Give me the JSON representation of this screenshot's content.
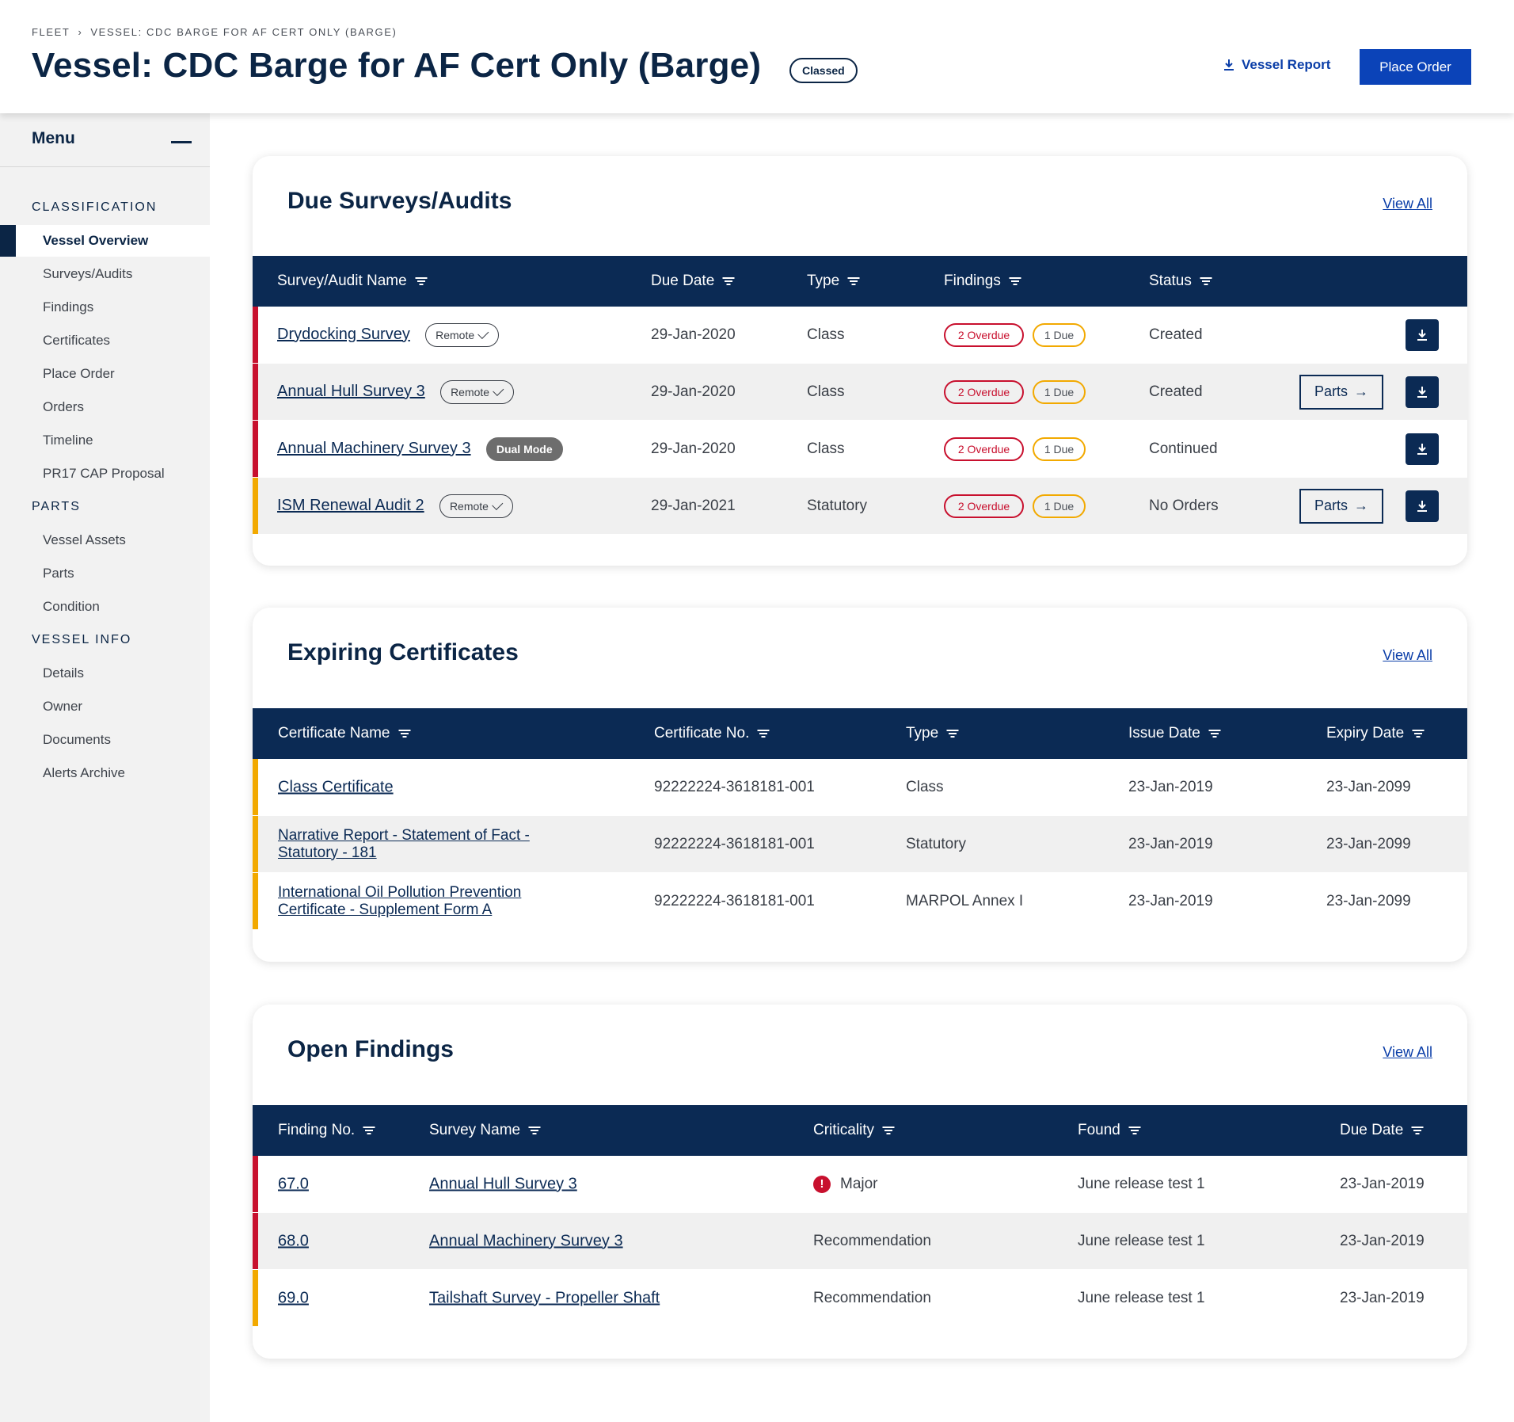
{
  "header": {
    "breadcrumb": [
      "FLEET",
      "VESSEL: CDC BARGE FOR AF CERT ONLY (BARGE)"
    ],
    "title": "Vessel: CDC Barge for AF Cert Only (Barge)",
    "badge": "Classed",
    "vessel_report_label": "Vessel Report",
    "place_order_label": "Place Order"
  },
  "sidebar": {
    "menu_title": "Menu",
    "sections": [
      {
        "title": "CLASSIFICATION",
        "items": [
          "Vessel Overview",
          "Surveys/Audits",
          "Findings",
          "Certificates",
          "Place Order",
          "Orders",
          "Timeline",
          "PR17 CAP Proposal"
        ]
      },
      {
        "title": "PARTS",
        "items": [
          "Vessel Assets",
          "Parts",
          "Condition"
        ]
      },
      {
        "title": "VESSEL INFO",
        "items": [
          "Details",
          "Owner",
          "Documents",
          "Alerts Archive"
        ]
      }
    ],
    "active_item": "Vessel Overview"
  },
  "surveys": {
    "title": "Due Surveys/Audits",
    "view_all": "View All",
    "columns": [
      "Survey/Audit Name",
      "Due Date",
      "Type",
      "Findings",
      "Status"
    ],
    "rows": [
      {
        "name": "Drydocking Survey",
        "tag": "Remote",
        "due": "29-Jan-2020",
        "type": "Class",
        "overdue": "2 Overdue",
        "due_count": "1 Due",
        "status": "Created",
        "parts": ""
      },
      {
        "name": "Annual Hull Survey 3",
        "tag": "Remote",
        "due": "29-Jan-2020",
        "type": "Class",
        "overdue": "2 Overdue",
        "due_count": "1 Due",
        "status": "Created",
        "parts": "Parts"
      },
      {
        "name": "Annual Machinery Survey 3",
        "tag": "Dual Mode",
        "due": "29-Jan-2020",
        "type": "Class",
        "overdue": "2 Overdue",
        "due_count": "1 Due",
        "status": "Continued",
        "parts": ""
      },
      {
        "name": "ISM Renewal Audit 2",
        "tag": "Remote",
        "due": "29-Jan-2021",
        "type": "Statutory",
        "overdue": "2 Overdue",
        "due_count": "1 Due",
        "status": "No Orders",
        "parts": "Parts"
      }
    ]
  },
  "certificates": {
    "title": "Expiring Certificates",
    "view_all": "View All",
    "columns": [
      "Certificate Name",
      "Certificate No.",
      "Type",
      "Issue Date",
      "Expiry Date"
    ],
    "rows": [
      {
        "name": "Class Certificate",
        "number": "92222224-3618181-001",
        "type": "Class",
        "issue": "23-Jan-2019",
        "expiry": "23-Jan-2099"
      },
      {
        "name": "Narrative Report - Statement of Fact - Statutory - 181",
        "number": "92222224-3618181-001",
        "type": "Statutory",
        "issue": "23-Jan-2019",
        "expiry": "23-Jan-2099"
      },
      {
        "name": "International Oil Pollution Prevention Certificate - Supplement Form A",
        "number": "92222224-3618181-001",
        "type": "MARPOL Annex I",
        "issue": "23-Jan-2019",
        "expiry": "23-Jan-2099"
      }
    ]
  },
  "findings": {
    "title": "Open Findings",
    "view_all": "View All",
    "columns": [
      "Finding No.",
      "Survey Name",
      "Criticality",
      "Found",
      "Due Date"
    ],
    "rows": [
      {
        "number": "67.0",
        "survey": "Annual Hull Survey 3",
        "criticality": "Major",
        "found": "June release test 1",
        "due": "23-Jan-2019"
      },
      {
        "number": "68.0",
        "survey": "Annual Machinery Survey 3",
        "criticality": "Recommendation",
        "found": "June release test 1",
        "due": "23-Jan-2019"
      },
      {
        "number": "69.0",
        "survey": "Tailshaft Survey - Propeller Shaft",
        "criticality": "Recommendation",
        "found": "June release test 1",
        "due": "23-Jan-2019"
      }
    ]
  },
  "colors": {
    "navy": "#0b2a54",
    "primary_blue": "#0b43b8",
    "overdue_red": "#c8102e",
    "due_amber": "#f2a900"
  }
}
